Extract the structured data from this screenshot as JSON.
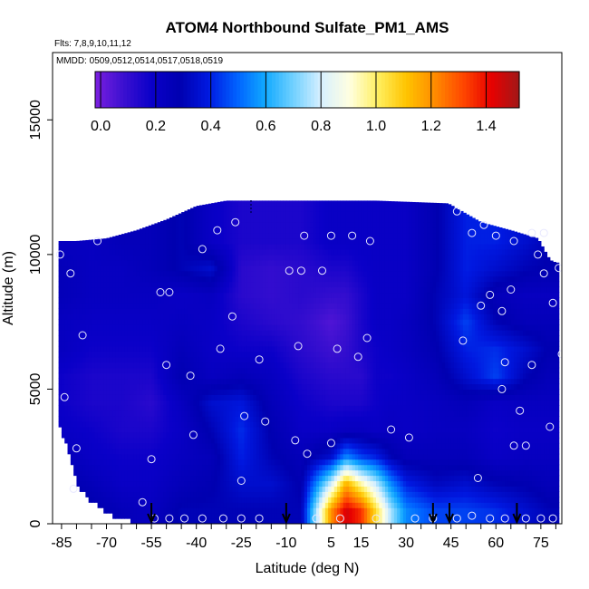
{
  "chart_data": {
    "type": "heatmap",
    "title": "ATOM4 Northbound Sulfate_PM1_AMS",
    "flights_note": "Flts: 7,8,9,10,11,12",
    "dates_note": "MMDD: 0509,0512,0514,0517,0518,0519",
    "xlabel": "Latitude (deg N)",
    "ylabel": "Altitude (m)",
    "xlim": [
      -88,
      82
    ],
    "ylim": [
      0,
      17500
    ],
    "x_ticks": [
      -85,
      -70,
      -55,
      -40,
      -25,
      -10,
      5,
      15,
      30,
      45,
      60,
      75
    ],
    "y_ticks": [
      0,
      5000,
      10000,
      15000
    ],
    "colorbar": {
      "min": -0.02,
      "max": 1.52,
      "ticks": [
        0.0,
        0.2,
        0.4,
        0.6,
        0.8,
        1.0,
        1.2,
        1.4
      ],
      "colors": [
        "#7b1fe0",
        "#3b10d0",
        "#0a00c8",
        "#0000b0",
        "#0018e0",
        "#0060ff",
        "#10a8ff",
        "#70d0ff",
        "#d8f0ff",
        "#ffffe0",
        "#ffef60",
        "#ffc400",
        "#ff8c00",
        "#ff4800",
        "#e80000",
        "#a01818"
      ]
    },
    "grid": [
      {
        "lat": -85,
        "values": [
          0.35,
          0.3,
          0.25,
          0.2,
          0.18,
          0.18,
          0.22,
          0.22,
          0.25,
          0.25,
          0.22
        ]
      },
      {
        "lat": -75,
        "values": [
          0.3,
          0.25,
          0.2,
          0.18,
          0.15,
          0.15,
          0.18,
          0.2,
          0.22,
          0.22,
          0.22
        ]
      },
      {
        "lat": -65,
        "values": [
          0.25,
          0.2,
          0.18,
          0.15,
          0.15,
          0.15,
          0.18,
          0.2,
          0.22,
          0.22,
          0.25
        ]
      },
      {
        "lat": -55,
        "values": [
          0.22,
          0.2,
          0.18,
          0.15,
          0.12,
          0.15,
          0.18,
          0.2,
          0.22,
          0.25,
          0.25
        ]
      },
      {
        "lat": -45,
        "values": [
          0.3,
          0.25,
          0.22,
          0.2,
          0.22,
          0.28,
          0.25,
          0.22,
          0.2,
          0.3,
          0.3
        ]
      },
      {
        "lat": -35,
        "values": [
          0.3,
          0.28,
          0.25,
          0.3,
          0.35,
          0.22,
          0.2,
          0.2,
          0.22,
          0.35,
          0.2
        ]
      },
      {
        "lat": -25,
        "values": [
          0.3,
          0.35,
          0.4,
          0.42,
          0.38,
          0.25,
          0.18,
          0.15,
          0.12,
          0.12,
          0.15
        ]
      },
      {
        "lat": -15,
        "values": [
          0.3,
          0.35,
          0.3,
          0.28,
          0.25,
          0.22,
          0.18,
          0.12,
          0.1,
          0.1,
          0.15
        ]
      },
      {
        "lat": -5,
        "values": [
          0.3,
          0.28,
          0.25,
          0.2,
          0.18,
          0.15,
          0.12,
          0.1,
          0.12,
          0.12,
          0.15
        ]
      },
      {
        "lat": 5,
        "values": [
          1.2,
          0.8,
          0.35,
          0.2,
          0.15,
          0.12,
          0.08,
          0.05,
          0.1,
          0.15,
          0.2
        ]
      },
      {
        "lat": 10,
        "values": [
          1.45,
          1.15,
          0.55,
          0.22,
          0.15,
          0.12,
          0.1,
          0.08,
          0.1,
          0.15,
          0.2
        ]
      },
      {
        "lat": 15,
        "values": [
          1.35,
          0.95,
          0.45,
          0.22,
          0.15,
          0.12,
          0.15,
          0.15,
          0.15,
          0.18,
          0.2
        ]
      },
      {
        "lat": 20,
        "values": [
          1.05,
          0.78,
          0.4,
          0.2,
          0.18,
          0.18,
          0.18,
          0.2,
          0.2,
          0.2,
          0.2
        ]
      },
      {
        "lat": 25,
        "values": [
          0.75,
          0.55,
          0.3,
          0.22,
          0.2,
          0.18,
          0.2,
          0.2,
          0.2,
          0.2,
          0.2
        ]
      },
      {
        "lat": 30,
        "values": [
          0.55,
          0.4,
          0.25,
          0.2,
          0.2,
          0.2,
          0.22,
          0.22,
          0.2,
          0.2,
          0.2
        ]
      },
      {
        "lat": 40,
        "values": [
          0.45,
          0.32,
          0.25,
          0.22,
          0.22,
          0.25,
          0.28,
          0.3,
          0.3,
          0.28,
          0.28
        ]
      },
      {
        "lat": 50,
        "values": [
          0.45,
          0.35,
          0.25,
          0.22,
          0.25,
          0.35,
          0.4,
          0.45,
          0.38,
          0.4,
          0.4
        ]
      },
      {
        "lat": 60,
        "values": [
          0.42,
          0.3,
          0.2,
          0.18,
          0.2,
          0.45,
          0.42,
          0.3,
          0.25,
          0.35,
          0.4
        ]
      },
      {
        "lat": 70,
        "values": [
          0.35,
          0.28,
          0.22,
          0.2,
          0.22,
          0.3,
          0.35,
          0.25,
          0.22,
          0.3,
          0.35
        ]
      },
      {
        "lat": 78,
        "values": [
          0.3,
          0.25,
          0.22,
          0.2,
          0.22,
          0.25,
          0.28,
          0.25,
          0.22,
          0.28,
          0.3
        ]
      }
    ],
    "altitude_levels": [
      500,
      1500,
      2500,
      3500,
      4500,
      5500,
      6500,
      7500,
      8500,
      9500,
      10500
    ],
    "coverage": [
      {
        "lat": -86,
        "top": 10500
      },
      {
        "lat": -80,
        "top": 10500
      },
      {
        "lat": -70,
        "top": 10600
      },
      {
        "lat": -60,
        "top": 10900
      },
      {
        "lat": -50,
        "top": 11300
      },
      {
        "lat": -40,
        "top": 11800
      },
      {
        "lat": -30,
        "top": 12000
      },
      {
        "lat": 0,
        "top": 12000
      },
      {
        "lat": 20,
        "top": 12000
      },
      {
        "lat": 44,
        "top": 11900
      },
      {
        "lat": 55,
        "top": 11200
      },
      {
        "lat": 65,
        "top": 10900
      },
      {
        "lat": 74,
        "top": 10600
      },
      {
        "lat": 78,
        "top": 9800
      },
      {
        "lat": 80,
        "top": 9700
      }
    ],
    "bottom_edge": [
      {
        "lat": -86,
        "bottom": 3800
      },
      {
        "lat": -82,
        "bottom": 2600
      },
      {
        "lat": -80,
        "bottom": 1600
      },
      {
        "lat": -76,
        "bottom": 1000
      },
      {
        "lat": -68,
        "bottom": 400
      },
      {
        "lat": -60,
        "bottom": 150
      },
      {
        "lat": -56,
        "bottom": 0
      }
    ],
    "sample_points": [
      {
        "lat": -85.5,
        "alt": 10000
      },
      {
        "lat": -82,
        "alt": 9300
      },
      {
        "lat": -73,
        "alt": 10500
      },
      {
        "lat": -78,
        "alt": 7000
      },
      {
        "lat": -84,
        "alt": 4700
      },
      {
        "lat": -80,
        "alt": 2800
      },
      {
        "lat": -81,
        "alt": 1300
      },
      {
        "lat": -58,
        "alt": 800
      },
      {
        "lat": -55,
        "alt": 2400
      },
      {
        "lat": -52,
        "alt": 8600
      },
      {
        "lat": -49,
        "alt": 8600
      },
      {
        "lat": -50,
        "alt": 5900
      },
      {
        "lat": -42,
        "alt": 5500
      },
      {
        "lat": -41,
        "alt": 3300
      },
      {
        "lat": -38,
        "alt": 10200
      },
      {
        "lat": -33,
        "alt": 10900
      },
      {
        "lat": -27,
        "alt": 11200
      },
      {
        "lat": -28,
        "alt": 7700
      },
      {
        "lat": -32,
        "alt": 6500
      },
      {
        "lat": -24,
        "alt": 4000
      },
      {
        "lat": -19,
        "alt": 6100
      },
      {
        "lat": -17,
        "alt": 3800
      },
      {
        "lat": -25,
        "alt": 1600
      },
      {
        "lat": -9,
        "alt": 9400
      },
      {
        "lat": -5,
        "alt": 9400
      },
      {
        "lat": -6,
        "alt": 6600
      },
      {
        "lat": -7,
        "alt": 3100
      },
      {
        "lat": -3,
        "alt": 2600
      },
      {
        "lat": -4,
        "alt": 10700
      },
      {
        "lat": 2,
        "alt": 9400
      },
      {
        "lat": 5,
        "alt": 10700
      },
      {
        "lat": 12,
        "alt": 10700
      },
      {
        "lat": 18,
        "alt": 10500
      },
      {
        "lat": 7,
        "alt": 6500
      },
      {
        "lat": 14,
        "alt": 6200
      },
      {
        "lat": 17,
        "alt": 6900
      },
      {
        "lat": 5,
        "alt": 3000
      },
      {
        "lat": 25,
        "alt": 3500
      },
      {
        "lat": 31,
        "alt": 3200
      },
      {
        "lat": 47,
        "alt": 11600
      },
      {
        "lat": 52,
        "alt": 10800
      },
      {
        "lat": 56,
        "alt": 11100
      },
      {
        "lat": 60,
        "alt": 10700
      },
      {
        "lat": 66,
        "alt": 10500
      },
      {
        "lat": 72,
        "alt": 10800
      },
      {
        "lat": 76,
        "alt": 10800
      },
      {
        "lat": 74,
        "alt": 10000
      },
      {
        "lat": 81,
        "alt": 9500
      },
      {
        "lat": 76,
        "alt": 9300
      },
      {
        "lat": 79,
        "alt": 8200
      },
      {
        "lat": 65,
        "alt": 8700
      },
      {
        "lat": 58,
        "alt": 8500
      },
      {
        "lat": 55,
        "alt": 8100
      },
      {
        "lat": 62,
        "alt": 7900
      },
      {
        "lat": 49,
        "alt": 6800
      },
      {
        "lat": 63,
        "alt": 6000
      },
      {
        "lat": 72,
        "alt": 5900
      },
      {
        "lat": 62,
        "alt": 5000
      },
      {
        "lat": 68,
        "alt": 4200
      },
      {
        "lat": 66,
        "alt": 2900
      },
      {
        "lat": 70,
        "alt": 2900
      },
      {
        "lat": 78,
        "alt": 3600
      },
      {
        "lat": 82,
        "alt": 6300
      },
      {
        "lat": 54,
        "alt": 1700
      },
      {
        "lat": 47,
        "alt": 200
      },
      {
        "lat": 52,
        "alt": 300
      },
      {
        "lat": 58,
        "alt": 200
      },
      {
        "lat": 63,
        "alt": 200
      },
      {
        "lat": 70,
        "alt": 200
      },
      {
        "lat": 75,
        "alt": 200
      },
      {
        "lat": 79,
        "alt": 200
      },
      {
        "lat": -54,
        "alt": 200
      },
      {
        "lat": -49,
        "alt": 200
      },
      {
        "lat": -44,
        "alt": 200
      },
      {
        "lat": -38,
        "alt": 200
      },
      {
        "lat": -31,
        "alt": 200
      },
      {
        "lat": -25,
        "alt": 200
      },
      {
        "lat": -19,
        "alt": 200
      },
      {
        "lat": 0,
        "alt": 200
      },
      {
        "lat": 8,
        "alt": 200
      },
      {
        "lat": 20,
        "alt": 200
      },
      {
        "lat": 39,
        "alt": 200
      },
      {
        "lat": 33,
        "alt": 200
      }
    ],
    "arrows_lat": [
      -55,
      -10,
      39,
      44.5,
      67
    ]
  }
}
